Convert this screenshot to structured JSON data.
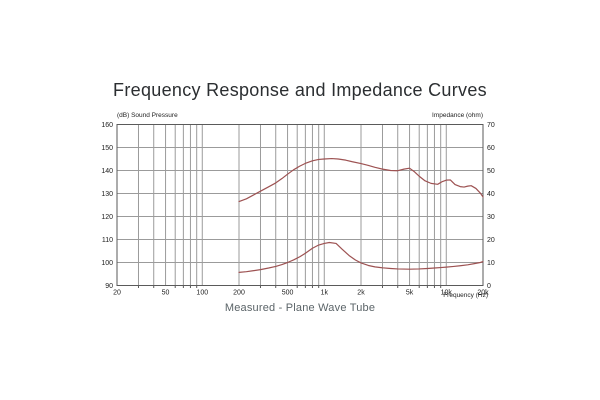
{
  "title": "Frequency Response and Impedance Curves",
  "caption": "Measured - Plane Wave Tube",
  "axes": {
    "left_title": "(dB)  Sound Pressure",
    "right_title": "Impedance  (ohm)",
    "x_title": "Frequency  (Hz)"
  },
  "colors": {
    "curve": "#9d5252",
    "grid": "#9b9b9b",
    "border": "#5a5a5a",
    "tick_text": "#1d1d1d",
    "title_text": "#2b2e31",
    "caption_text": "#5b6468"
  },
  "chart_data": {
    "type": "line",
    "title": "Frequency Response and Impedance Curves",
    "x_scale": "log",
    "x_range": [
      20,
      20000
    ],
    "x_tick_values": [
      20,
      50,
      100,
      200,
      500,
      1000,
      2000,
      5000,
      10000,
      20000
    ],
    "x_tick_labels": [
      "20",
      "50",
      "100",
      "200",
      "500",
      "1k",
      "2k",
      "5k",
      "10k",
      "20k"
    ],
    "grid": "log-minor-on",
    "left_axis": {
      "label": "(dB) Sound Pressure",
      "range": [
        90,
        160
      ],
      "ticks": [
        160,
        150,
        140,
        130,
        120,
        110,
        100,
        90
      ]
    },
    "right_axis": {
      "label": "Impedance (ohm)",
      "range": [
        0,
        70
      ],
      "ticks": [
        70,
        60,
        50,
        40,
        30,
        20,
        10,
        0
      ]
    },
    "series": [
      {
        "name": "Sound Pressure (dB)",
        "axis": "left",
        "points": [
          [
            200,
            126.5
          ],
          [
            230,
            127.7
          ],
          [
            260,
            129.2
          ],
          [
            300,
            131.0
          ],
          [
            350,
            132.9
          ],
          [
            400,
            134.6
          ],
          [
            450,
            136.5
          ],
          [
            500,
            138.4
          ],
          [
            560,
            140.3
          ],
          [
            630,
            141.9
          ],
          [
            700,
            143.1
          ],
          [
            800,
            144.2
          ],
          [
            900,
            144.8
          ],
          [
            1000,
            145.0
          ],
          [
            1150,
            145.2
          ],
          [
            1300,
            145.0
          ],
          [
            1500,
            144.5
          ],
          [
            1700,
            143.8
          ],
          [
            2000,
            143.0
          ],
          [
            2300,
            142.2
          ],
          [
            2600,
            141.4
          ],
          [
            3000,
            140.6
          ],
          [
            3500,
            140.0
          ],
          [
            4000,
            139.9
          ],
          [
            4500,
            140.6
          ],
          [
            5000,
            141.0
          ],
          [
            5500,
            139.4
          ],
          [
            6000,
            137.5
          ],
          [
            6700,
            135.5
          ],
          [
            7500,
            134.4
          ],
          [
            8500,
            134.0
          ],
          [
            9300,
            135.2
          ],
          [
            10000,
            135.8
          ],
          [
            10800,
            135.9
          ],
          [
            11800,
            133.9
          ],
          [
            13000,
            133.0
          ],
          [
            14000,
            132.8
          ],
          [
            15000,
            133.2
          ],
          [
            16000,
            133.4
          ],
          [
            17500,
            132.2
          ],
          [
            19000,
            130.2
          ],
          [
            20000,
            128.5
          ]
        ]
      },
      {
        "name": "Impedance (ohm)",
        "axis": "right",
        "points": [
          [
            200,
            5.7
          ],
          [
            230,
            6.0
          ],
          [
            260,
            6.4
          ],
          [
            300,
            6.9
          ],
          [
            350,
            7.6
          ],
          [
            400,
            8.3
          ],
          [
            450,
            9.1
          ],
          [
            500,
            10.0
          ],
          [
            560,
            11.1
          ],
          [
            630,
            12.5
          ],
          [
            700,
            14.0
          ],
          [
            800,
            16.2
          ],
          [
            900,
            17.6
          ],
          [
            1000,
            18.3
          ],
          [
            1100,
            18.7
          ],
          [
            1250,
            18.3
          ],
          [
            1400,
            15.8
          ],
          [
            1600,
            13.0
          ],
          [
            1800,
            11.1
          ],
          [
            2000,
            9.8
          ],
          [
            2300,
            8.7
          ],
          [
            2600,
            8.1
          ],
          [
            3000,
            7.7
          ],
          [
            3500,
            7.4
          ],
          [
            4000,
            7.2
          ],
          [
            5000,
            7.1
          ],
          [
            6000,
            7.2
          ],
          [
            7000,
            7.4
          ],
          [
            8000,
            7.6
          ],
          [
            9000,
            7.8
          ],
          [
            10000,
            8.0
          ],
          [
            11500,
            8.3
          ],
          [
            13000,
            8.6
          ],
          [
            15000,
            9.0
          ],
          [
            17000,
            9.5
          ],
          [
            19000,
            10.0
          ],
          [
            20000,
            10.4
          ]
        ]
      }
    ]
  }
}
